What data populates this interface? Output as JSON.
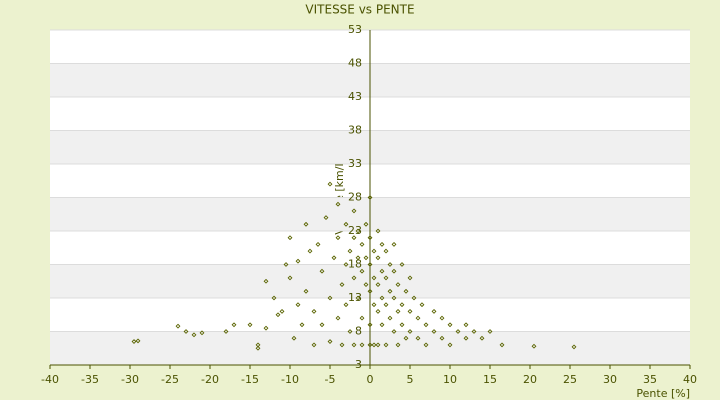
{
  "chart_data": {
    "type": "scatter",
    "title": "VITESSE vs PENTE",
    "x_label": "Pente [%]",
    "y_label": "Vitesse [km/h]",
    "color": "#5a6400",
    "xlim": [
      -40,
      40
    ],
    "xticks": [
      -40,
      -35,
      -30,
      -25,
      -20,
      -15,
      -10,
      -5,
      0,
      5,
      10,
      15,
      20,
      25,
      30,
      35,
      40
    ],
    "ylim": [
      3,
      53
    ],
    "yticks": [
      3,
      8,
      13,
      18,
      23,
      28,
      33,
      38,
      43,
      48,
      53
    ],
    "grid": true,
    "x": [
      -29.5,
      -29,
      -24,
      -23,
      -22,
      -21,
      -18,
      -17,
      -15,
      -14,
      -14,
      -13,
      -13,
      -12,
      -11.5,
      -11,
      -10.5,
      -10,
      -10,
      -9.5,
      -9,
      -9,
      -8.5,
      -8,
      -8,
      -7.5,
      -7,
      -7,
      -6.5,
      -6,
      -6,
      -5.5,
      -5,
      -5,
      -5,
      -4.5,
      -4,
      -4,
      -4,
      -3.5,
      -3.5,
      -3,
      -3,
      -3,
      -2.5,
      -2.5,
      -2,
      -2,
      -2,
      -2,
      -1.5,
      -1.5,
      -1.5,
      -1,
      -1,
      -1,
      -1,
      -0.5,
      -0.5,
      -0.5,
      0,
      0,
      0,
      0,
      0,
      0,
      0.5,
      0.5,
      0.5,
      0.5,
      1,
      1,
      1,
      1,
      1,
      1.5,
      1.5,
      1.5,
      1.5,
      2,
      2,
      2,
      2,
      2.5,
      2.5,
      2.5,
      3,
      3,
      3,
      3,
      3.5,
      3.5,
      3.5,
      4,
      4,
      4,
      4.5,
      4.5,
      5,
      5,
      5,
      5.5,
      6,
      6,
      6.5,
      7,
      7,
      8,
      8,
      9,
      9,
      10,
      10,
      11,
      12,
      12,
      13,
      14,
      15,
      16.5,
      20.5,
      25.5
    ],
    "values": [
      6.5,
      6.6,
      8.8,
      8,
      7.5,
      7.8,
      8,
      9,
      9,
      6,
      5.5,
      8.5,
      15.5,
      13,
      10.5,
      11,
      18,
      16,
      22,
      7,
      12,
      18.5,
      9,
      24,
      14,
      20,
      6,
      11,
      21,
      17,
      9,
      25,
      13,
      6.5,
      30,
      19,
      22,
      10,
      27,
      15,
      6,
      24,
      18,
      12,
      20,
      8,
      26,
      22,
      16,
      6,
      19,
      13,
      23,
      21,
      17,
      10,
      6,
      24,
      19,
      15,
      22,
      18,
      14,
      9,
      6,
      28,
      20,
      16,
      12,
      6,
      23,
      19,
      15,
      11,
      6,
      21,
      17,
      13,
      9,
      20,
      16,
      12,
      6,
      18,
      14,
      10,
      21,
      17,
      13,
      8,
      15,
      11,
      6,
      18,
      12,
      9,
      14,
      7,
      16,
      11,
      8,
      13,
      10,
      7,
      12,
      9,
      6,
      11,
      8,
      10,
      7,
      9,
      6,
      8,
      9,
      7,
      8,
      7,
      8,
      6,
      5.8,
      5.7
    ]
  }
}
